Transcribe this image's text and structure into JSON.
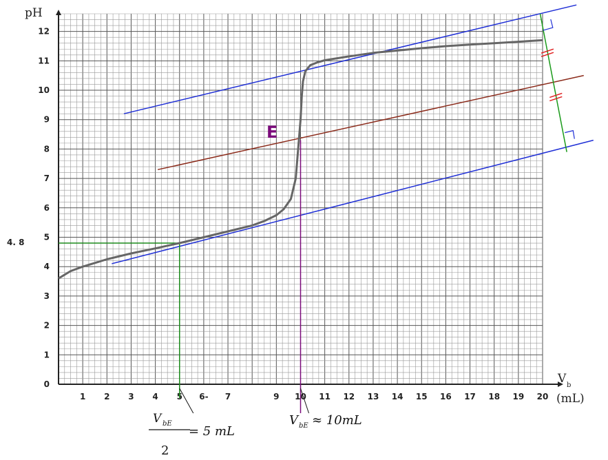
{
  "chart_data": {
    "type": "line",
    "ylabel": "pH",
    "xlabel_main": "V",
    "xlabel_sub": "b",
    "xlabel_unit": "(mL)",
    "xlim": [
      0,
      20
    ],
    "ylim": [
      0,
      12.6
    ],
    "x_ticks": [
      "1",
      "2",
      "3",
      "4",
      "5",
      "6-",
      "7",
      "9",
      "10",
      "11",
      "12",
      "13",
      "14",
      "15",
      "16",
      "17",
      "18",
      "19",
      "20"
    ],
    "x_tick_values": [
      1,
      2,
      3,
      4,
      5,
      6,
      7,
      9,
      10,
      11,
      12,
      13,
      14,
      15,
      16,
      17,
      18,
      19,
      20
    ],
    "y_ticks": [
      "0",
      "1",
      "2",
      "3",
      "4",
      "5",
      "6",
      "7",
      "8",
      "9",
      "10",
      "11",
      "12"
    ],
    "grid": true,
    "series": [
      {
        "values_x": [
          0,
          0.5,
          1,
          2,
          3,
          4,
          5,
          6,
          7,
          8,
          8.5,
          9,
          9.3,
          9.6,
          9.8,
          9.9,
          10.0,
          10.05,
          10.1,
          10.2,
          10.4,
          10.7,
          11,
          12,
          13,
          14,
          15,
          16,
          17,
          18,
          19,
          20
        ],
        "values_y": [
          3.6,
          3.85,
          4.0,
          4.25,
          4.45,
          4.62,
          4.8,
          5.0,
          5.2,
          5.4,
          5.55,
          5.75,
          5.95,
          6.3,
          7.0,
          8.0,
          9.0,
          9.8,
          10.3,
          10.65,
          10.85,
          10.95,
          11.02,
          11.15,
          11.27,
          11.35,
          11.43,
          11.5,
          11.55,
          11.6,
          11.65,
          11.7
        ],
        "color": "#666666"
      }
    ],
    "tangent_top": {
      "from": [
        2.7,
        9.2
      ],
      "to": [
        21.4,
        12.9
      ],
      "color": "#1f2fd6"
    },
    "tangent_bottom": {
      "from": [
        2.2,
        4.1
      ],
      "to": [
        22.1,
        8.3
      ],
      "color": "#1f2fd6"
    },
    "median_line": {
      "from": [
        4.1,
        7.3
      ],
      "to": [
        21.7,
        10.5
      ],
      "color": "#8b2a1a"
    },
    "perpendicular": {
      "from": [
        19.9,
        12.6
      ],
      "to": [
        21.0,
        7.9
      ],
      "color": "#1a9a1a"
    },
    "equivalence_point": {
      "x": 10,
      "y": 8.3,
      "label": "E",
      "color": "#7a0a7a"
    },
    "half_equivalence": {
      "x": 5,
      "y": 4.8,
      "label": "4. 8",
      "color": "#1a8a1a"
    },
    "annotation_left": {
      "numerator_main": "V",
      "numerator_sub": "bE",
      "denominator": "2",
      "rhs": "= 5  mL"
    },
    "annotation_right": {
      "main": "V",
      "sub": "bE",
      "rhs": "≈ 10mL"
    }
  }
}
